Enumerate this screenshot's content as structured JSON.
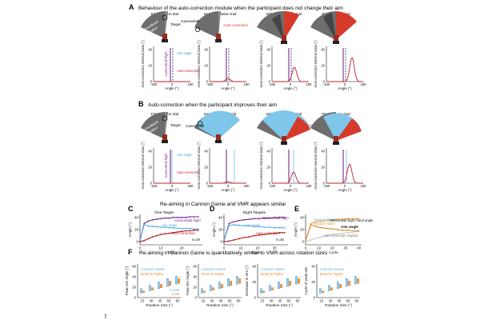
{
  "page_marker": "7",
  "panelA": {
    "letter": "A",
    "title": "Behaviour of the auto-correction module when the participant does not change their aim",
    "trials": [
      "First rotation trial",
      "Second rotation trial",
      "Mid-point rotation trial",
      "Final rotation trial"
    ],
    "labels": {
      "feedback": "Feedback",
      "rotation": "rotation",
      "target": "Target",
      "cannonball": "Cannonball",
      "auto_correction": "Auto-correction",
      "aim_angle": "Aim angle",
      "cannonball_flight": "Cannonball flight"
    },
    "ylabel": "Auto-correction internal state (°)",
    "xlabel": "Angle (°)",
    "yticks": [
      "0",
      "20",
      "40"
    ],
    "xticks": [
      "-180",
      "0",
      "180"
    ]
  },
  "panelB": {
    "letter": "B",
    "title": "Auto-correction when the participant improves their aim",
    "trials": [
      "First rotation trial",
      "Second rotation trial",
      "Mid-point rotation trial",
      "Final rotation trial"
    ],
    "labels": {
      "feedback": "Feedback",
      "rotation": "rotation",
      "target": "Target",
      "cannonball": "Cannonball",
      "auto_correction": "Auto-correction",
      "aim_angle": "Aim angle",
      "cannonball_flight": "Cannonball flight"
    },
    "ylabel": "Auto-correction internal state (°)",
    "xlabel": "Angle (°)",
    "yticks": [
      "0",
      "20",
      "40"
    ],
    "xticks": [
      "-180",
      "0",
      "180"
    ]
  },
  "rowCDE": {
    "title": "Re-aiming in Cannon Game and VMR appears similar",
    "C": {
      "letter": "C",
      "subtitle": "One Target",
      "ylabel": "Angle (°)",
      "xlabel": "Trial",
      "n": "n=29",
      "yticks": [
        "0",
        "20",
        "40"
      ],
      "xticks": [
        "0",
        "10",
        "20"
      ],
      "labels": {
        "flight": "Cannonball flight",
        "aim": "Aim angle",
        "auto": "Auto-correction"
      }
    },
    "D": {
      "letter": "D",
      "subtitle": "Eight Targets",
      "ylabel": "Angle (°)",
      "xlabel": "Cycle",
      "n": "n=46",
      "yticks": [
        "0",
        "20",
        "40"
      ],
      "xticks": [
        "0",
        "10",
        "20",
        "30"
      ],
      "labels": {
        "flight": "Cannonball flight",
        "aim": "Aim angle",
        "auto": "Auto-correction"
      }
    },
    "E": {
      "letter": "E",
      "ylabel": "Angle (°)",
      "xlabel": "Cycle",
      "yticks": [
        "0",
        "20",
        "40"
      ],
      "xticks": [
        "0",
        "10",
        "20",
        "30",
        "40"
      ],
      "labels": {
        "cannon_game": "Cannon Game",
        "bond_taylor": "Bond & Taylor",
        "flight_hand": "Cannonball flight /hand angle",
        "aim": "Aim angle",
        "auto_implicit": "Auto-correction /implicit"
      }
    }
  },
  "panelF": {
    "letter": "F",
    "title": "Re-aiming in Cannon Game is quantitatively similar to VMR across rotation sizes",
    "xlabel": "Rotation Size (°)",
    "xticks": [
      "15",
      "30",
      "45",
      "60",
      "90"
    ],
    "legend": {
      "cannon_game": "Cannon Game",
      "bond_taylor": "Bond & Taylor"
    },
    "plots": [
      {
        "ylabel": "Peak Aim Angle (°)",
        "yticks": [
          "0",
          "20",
          "40",
          "60"
        ],
        "n1": "n=249",
        "n2": "n=50"
      },
      {
        "ylabel": "Final Aim Angle (°)",
        "yticks": [
          "0",
          "20",
          "40",
          "60"
        ]
      },
      {
        "ylabel": "Decrease in Aim (°)",
        "yticks": [
          "0",
          "20",
          "40"
        ]
      },
      {
        "ylabel": "Cycle of peak aim",
        "yticks": [
          "0",
          "20",
          "40"
        ]
      }
    ]
  },
  "chart_data": [
    {
      "type": "line",
      "panel": "C",
      "x": [
        0,
        2,
        4,
        6,
        8,
        10,
        12,
        14,
        16,
        18,
        20,
        22,
        24,
        26,
        28
      ],
      "series": [
        {
          "name": "Cannonball flight",
          "values": [
            2,
            30,
            34,
            36,
            37,
            38,
            39,
            39,
            40,
            40,
            40,
            40,
            41,
            41,
            41
          ]
        },
        {
          "name": "Aim angle",
          "values": [
            2,
            28,
            26,
            25,
            25,
            24,
            24,
            23,
            23,
            22,
            22,
            22,
            22,
            21,
            21
          ]
        },
        {
          "name": "Auto-correction",
          "values": [
            0,
            2,
            5,
            8,
            10,
            12,
            13,
            14,
            15,
            16,
            17,
            18,
            18,
            19,
            19
          ]
        }
      ],
      "ylim": [
        -5,
        45
      ],
      "xlim": [
        0,
        30
      ]
    },
    {
      "type": "line",
      "panel": "D",
      "x": [
        0,
        3,
        6,
        9,
        12,
        15,
        18,
        21,
        24,
        27,
        30,
        33,
        36
      ],
      "series": [
        {
          "name": "Cannonball flight",
          "values": [
            2,
            30,
            33,
            35,
            36,
            37,
            38,
            38,
            39,
            39,
            40,
            40,
            40
          ]
        },
        {
          "name": "Aim angle",
          "values": [
            2,
            27,
            28,
            27,
            26,
            26,
            25,
            25,
            24,
            24,
            23,
            23,
            23
          ]
        },
        {
          "name": "Auto-correction",
          "values": [
            0,
            1,
            3,
            5,
            7,
            8,
            10,
            11,
            12,
            13,
            14,
            15,
            15
          ]
        }
      ],
      "ylim": [
        -5,
        45
      ],
      "xlim": [
        0,
        38
      ]
    },
    {
      "type": "line",
      "panel": "E",
      "x": [
        0,
        4,
        8,
        12,
        16,
        20,
        24,
        28,
        32,
        36,
        40
      ],
      "series": [
        {
          "name": "Cannonball flight /hand angle",
          "values": [
            2,
            30,
            33,
            34,
            35,
            36,
            37,
            37,
            38,
            38,
            38
          ]
        },
        {
          "name": "Aim angle",
          "values": [
            2,
            28,
            25,
            23,
            22,
            21,
            20,
            19,
            19,
            18,
            18
          ]
        },
        {
          "name": "Auto-correction /implicit",
          "values": [
            0,
            3,
            6,
            8,
            10,
            12,
            13,
            14,
            15,
            16,
            17
          ]
        }
      ],
      "ylim": [
        -5,
        45
      ],
      "xlim": [
        0,
        42
      ]
    }
  ]
}
